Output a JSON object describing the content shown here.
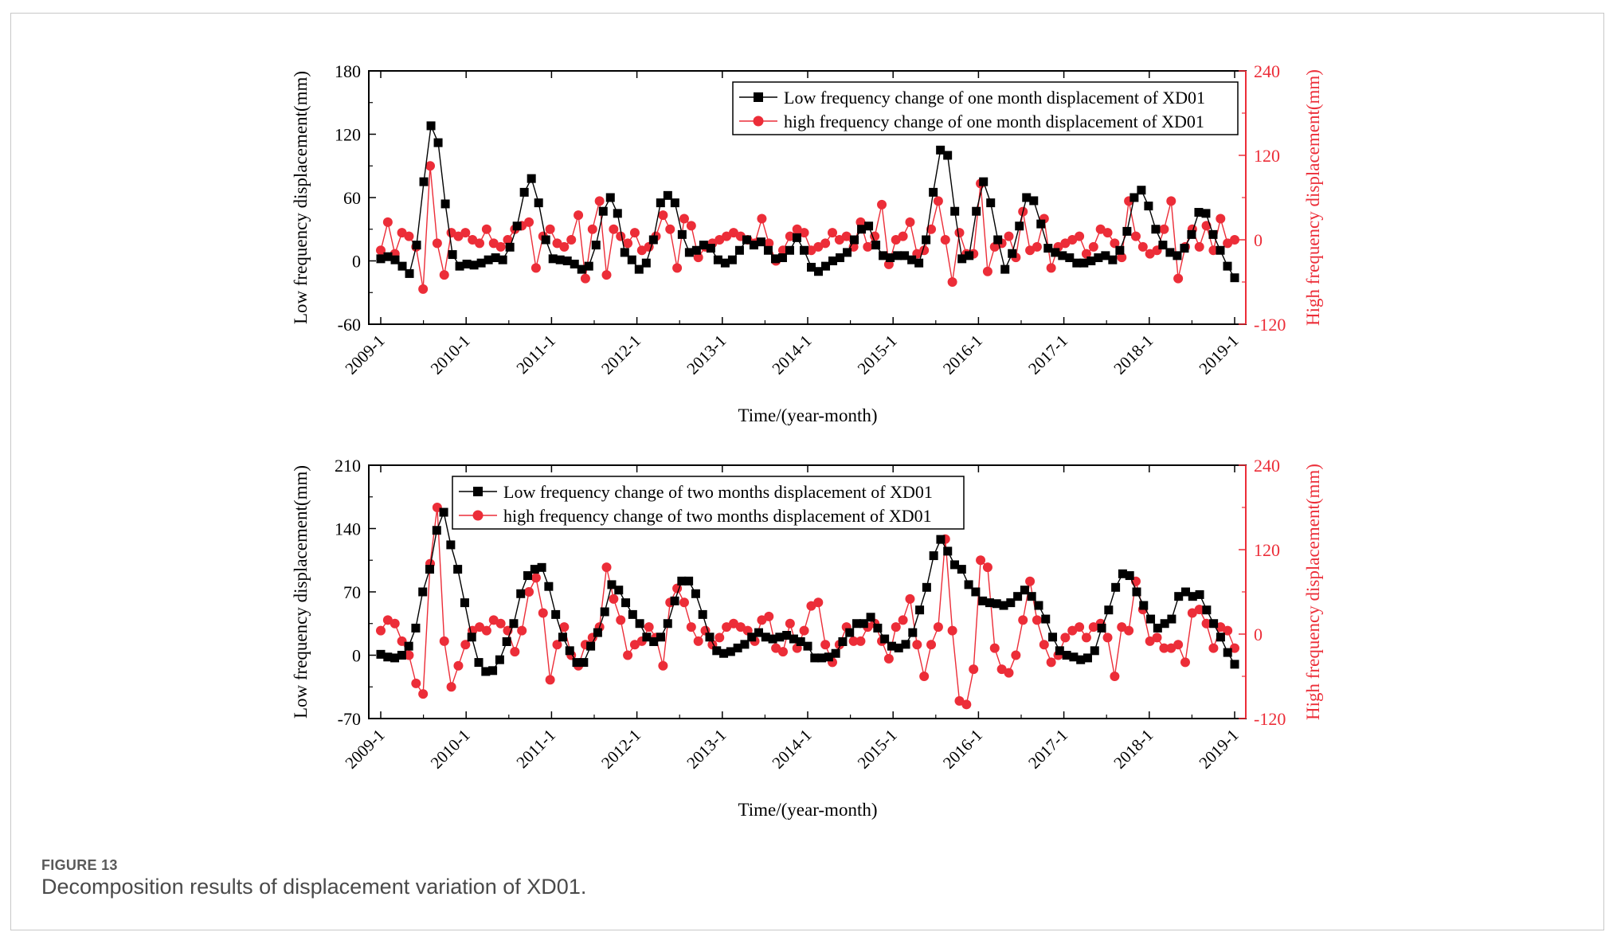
{
  "figure": {
    "label": "FIGURE 13",
    "caption": "Decomposition results of displacement variation of XD01."
  },
  "colors": {
    "low": "#000000",
    "high": "#ec2d38",
    "axis": "#000000",
    "frame": "#c8c8c8"
  },
  "chart_data": [
    {
      "type": "line",
      "title": "",
      "xlabel": "Time/(year-month)",
      "ylabel": "Low frequency displacement(mm)",
      "y2label": "High frequency displacement(mm)",
      "x_ticks": [
        "2009-1",
        "2010-1",
        "2011-1",
        "2012-1",
        "2013-1",
        "2014-1",
        "2015-1",
        "2016-1",
        "2017-1",
        "2018-1",
        "2019-1"
      ],
      "ylim": [
        -60,
        180
      ],
      "yticks": [
        -60,
        0,
        60,
        120,
        180
      ],
      "y2lim": [
        -120,
        240
      ],
      "y2ticks": [
        -120,
        0,
        120,
        240
      ],
      "legend": "top-right",
      "series": [
        {
          "name": "Low frequency change of one month displacement of XD01",
          "axis": "left",
          "marker": "square",
          "color": "#000000",
          "values": [
            2,
            4,
            1,
            -5,
            -12,
            15,
            75,
            128,
            112,
            54,
            6,
            -5,
            -3,
            -4,
            -2,
            1,
            3,
            1,
            13,
            33,
            65,
            78,
            55,
            20,
            2,
            1,
            0,
            -3,
            -8,
            -5,
            15,
            47,
            60,
            45,
            8,
            1,
            -8,
            -2,
            20,
            55,
            62,
            55,
            25,
            8,
            10,
            15,
            12,
            1,
            -2,
            1,
            10,
            20,
            15,
            18,
            10,
            2,
            3,
            10,
            22,
            10,
            -6,
            -10,
            -5,
            0,
            3,
            8,
            20,
            30,
            33,
            15,
            5,
            3,
            5,
            5,
            1,
            -2,
            20,
            65,
            105,
            100,
            47,
            2,
            5,
            47,
            75,
            55,
            20,
            -8,
            7,
            33,
            60,
            57,
            35,
            12,
            8,
            5,
            3,
            -2,
            -2,
            0,
            3,
            5,
            1,
            10,
            28,
            60,
            67,
            52,
            30,
            15,
            8,
            5,
            12,
            25,
            46,
            45,
            25,
            10,
            -5,
            -16
          ]
        },
        {
          "name": "high frequency change of one month displacement of XD01",
          "axis": "right",
          "marker": "circle",
          "color": "#ec2d38",
          "values": [
            -15,
            25,
            -20,
            10,
            5,
            -10,
            -70,
            105,
            -5,
            -50,
            10,
            5,
            10,
            0,
            -5,
            15,
            -5,
            -10,
            0,
            15,
            20,
            25,
            -40,
            5,
            15,
            -5,
            -10,
            0,
            35,
            -55,
            15,
            55,
            -50,
            15,
            5,
            -5,
            10,
            -15,
            -10,
            5,
            35,
            15,
            -40,
            30,
            20,
            -25,
            -10,
            -5,
            0,
            5,
            10,
            5,
            0,
            -5,
            30,
            -5,
            -30,
            -15,
            5,
            15,
            10,
            -15,
            -10,
            -5,
            10,
            0,
            5,
            -10,
            25,
            -10,
            5,
            50,
            -35,
            0,
            5,
            25,
            -20,
            -15,
            15,
            55,
            0,
            -60,
            10,
            -20,
            -20,
            80,
            -45,
            -10,
            -5,
            5,
            -25,
            40,
            -15,
            -10,
            30,
            -40,
            -10,
            -5,
            0,
            5,
            -20,
            -10,
            15,
            10,
            -5,
            -25,
            55,
            5,
            -10,
            -20,
            -15,
            15,
            55,
            -55,
            -10,
            15,
            -10,
            20,
            -15,
            30,
            -5,
            0
          ]
        }
      ]
    },
    {
      "type": "line",
      "title": "",
      "xlabel": "Time/(year-month)",
      "ylabel": "Low frequency displacement(mm)",
      "y2label": "High frequency displacement(mm)",
      "x_ticks": [
        "2009-1",
        "2010-1",
        "2011-1",
        "2012-1",
        "2013-1",
        "2014-1",
        "2015-1",
        "2016-1",
        "2017-1",
        "2018-1",
        "2019-1"
      ],
      "ylim": [
        -70,
        210
      ],
      "yticks": [
        -70,
        0,
        70,
        140,
        210
      ],
      "y2lim": [
        -120,
        240
      ],
      "y2ticks": [
        -120,
        0,
        120,
        240
      ],
      "legend": "top-left",
      "series": [
        {
          "name": "Low frequency change of two months displacement of XD01",
          "axis": "left",
          "marker": "square",
          "color": "#000000",
          "values": [
            1,
            -2,
            -3,
            0,
            10,
            30,
            70,
            95,
            138,
            158,
            122,
            95,
            58,
            20,
            -8,
            -18,
            -17,
            -5,
            15,
            35,
            68,
            88,
            95,
            97,
            76,
            45,
            20,
            5,
            -8,
            -8,
            10,
            25,
            48,
            78,
            72,
            58,
            45,
            35,
            20,
            15,
            20,
            35,
            60,
            82,
            82,
            68,
            45,
            20,
            5,
            2,
            4,
            8,
            12,
            20,
            25,
            20,
            18,
            20,
            22,
            18,
            15,
            10,
            -3,
            -3,
            -2,
            2,
            15,
            25,
            35,
            35,
            42,
            30,
            18,
            10,
            8,
            12,
            25,
            50,
            75,
            110,
            128,
            115,
            100,
            95,
            78,
            70,
            60,
            58,
            57,
            55,
            58,
            65,
            72,
            65,
            55,
            40,
            20,
            5,
            0,
            -2,
            -5,
            -3,
            5,
            30,
            50,
            75,
            90,
            88,
            70,
            55,
            40,
            30,
            35,
            40,
            65,
            70,
            65,
            67,
            50,
            35,
            20,
            3,
            -10
          ]
        },
        {
          "name": "high frequency change of two months displacement of XD01",
          "axis": "right",
          "marker": "circle",
          "color": "#ec2d38",
          "values": [
            5,
            20,
            15,
            -10,
            -30,
            -70,
            -85,
            100,
            180,
            -10,
            -75,
            -45,
            -15,
            5,
            10,
            5,
            20,
            15,
            5,
            -25,
            5,
            60,
            80,
            30,
            -65,
            -15,
            10,
            -30,
            -45,
            -15,
            -5,
            10,
            95,
            50,
            20,
            -30,
            -15,
            -10,
            10,
            -5,
            -45,
            45,
            65,
            45,
            10,
            -10,
            5,
            -15,
            -5,
            10,
            15,
            10,
            5,
            -10,
            20,
            25,
            -20,
            -25,
            15,
            -20,
            5,
            40,
            45,
            -15,
            -40,
            -15,
            10,
            -10,
            -10,
            10,
            15,
            -10,
            -35,
            10,
            20,
            50,
            -15,
            -60,
            -15,
            10,
            135,
            5,
            -95,
            -100,
            -50,
            105,
            95,
            -20,
            -50,
            -55,
            -30,
            20,
            75,
            20,
            -15,
            -40,
            -30,
            -5,
            5,
            10,
            -5,
            10,
            15,
            -5,
            -60,
            10,
            5,
            75,
            35,
            -10,
            -5,
            -20,
            -20,
            -15,
            -40,
            30,
            35,
            15,
            -20,
            10,
            5,
            -20
          ]
        }
      ]
    }
  ]
}
